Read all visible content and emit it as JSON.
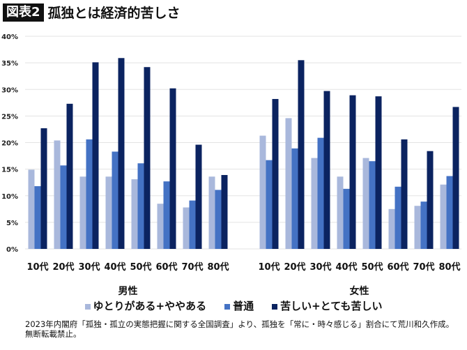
{
  "title": {
    "badge": "図表2",
    "text": "孤独とは経済的苦しさ"
  },
  "chart_data": {
    "type": "bar",
    "title": "孤独とは経済的苦しさ",
    "ylim": [
      0,
      40
    ],
    "yticks": [
      "0%",
      "5%",
      "10%",
      "15%",
      "20%",
      "25%",
      "30%",
      "35%",
      "40%"
    ],
    "grid": true,
    "legend_placement": "bottom",
    "groups": [
      {
        "label": "男性",
        "categories": [
          "10代",
          "20代",
          "30代",
          "40代",
          "50代",
          "60代",
          "70代",
          "80代"
        ],
        "series": [
          {
            "name": "ゆとりがある+ややある",
            "values": [
              14.9,
              20.4,
              13.6,
              13.6,
              13.1,
              8.5,
              7.8,
              13.6
            ]
          },
          {
            "name": "普通",
            "values": [
              11.8,
              15.7,
              20.6,
              18.3,
              16.1,
              12.7,
              9.1,
              11.1
            ]
          },
          {
            "name": "苦しい+とても苦しい",
            "values": [
              22.7,
              27.3,
              35.1,
              35.9,
              34.2,
              30.2,
              19.6,
              13.9
            ]
          }
        ]
      },
      {
        "label": "女性",
        "categories": [
          "10代",
          "20代",
          "30代",
          "40代",
          "50代",
          "60代",
          "70代",
          "80代"
        ],
        "series": [
          {
            "name": "ゆとりがある+ややある",
            "values": [
              21.3,
              24.6,
              17.1,
              13.6,
              17.1,
              7.5,
              8.1,
              12.1
            ]
          },
          {
            "name": "普通",
            "values": [
              16.7,
              18.9,
              20.9,
              11.3,
              16.5,
              11.7,
              8.9,
              13.7
            ]
          },
          {
            "name": "苦しい+とても苦しい",
            "values": [
              28.2,
              35.5,
              29.7,
              28.9,
              28.7,
              20.6,
              18.4,
              26.7
            ]
          }
        ]
      }
    ],
    "colors": [
      "#a9b8dc",
      "#4472c4",
      "#0b2360"
    ]
  },
  "legend": [
    "ゆとりがある+ややある",
    "普通",
    "苦しい+とても苦しい"
  ],
  "footnote": [
    "2023年内閣府「孤独・孤立の実態把握に関する全国調査」より、孤独を「常に・時々感じる」割合にて荒川和久作成。",
    "無断転載禁止。"
  ]
}
